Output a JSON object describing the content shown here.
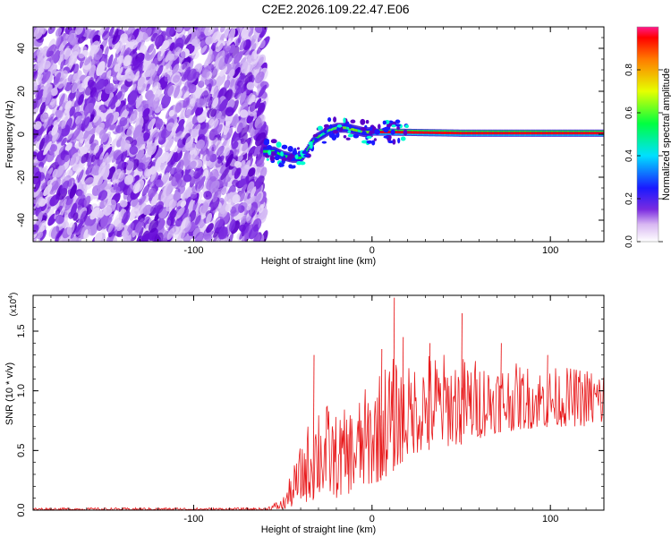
{
  "title": "C2E2.2026.109.22.47.E06",
  "chart_data": [
    {
      "type": "heatmap",
      "xlabel": "Height of straight line (km)",
      "ylabel": "Frequency (Hz)",
      "xlim": [
        -190,
        130
      ],
      "ylim": [
        -50,
        50
      ],
      "xticks": [
        -100,
        0,
        100
      ],
      "yticks": [
        -40,
        -20,
        0,
        20,
        40
      ],
      "noise_region_x": [
        -190,
        -60
      ],
      "signal_track": [
        {
          "x": -60,
          "f": -8
        },
        {
          "x": -55,
          "f": -8
        },
        {
          "x": -50,
          "f": -10
        },
        {
          "x": -45,
          "f": -11
        },
        {
          "x": -40,
          "f": -11
        },
        {
          "x": -37,
          "f": -8
        },
        {
          "x": -35,
          "f": -5
        },
        {
          "x": -32,
          "f": -2
        },
        {
          "x": -28,
          "f": 0
        },
        {
          "x": -24,
          "f": 2
        },
        {
          "x": -20,
          "f": 3
        },
        {
          "x": -15,
          "f": 3
        },
        {
          "x": -10,
          "f": 2
        },
        {
          "x": -5,
          "f": 1
        },
        {
          "x": 0,
          "f": 1
        },
        {
          "x": 10,
          "f": 1
        },
        {
          "x": 50,
          "f": 0.5
        },
        {
          "x": 130,
          "f": 0.5
        }
      ]
    },
    {
      "type": "line",
      "xlabel": "Height of straight line (km)",
      "ylabel": "SNR (10 * v/v)",
      "yscale_label": "(x10",
      "yscale_exp": "4",
      "xlim": [
        -190,
        130
      ],
      "ylim": [
        0,
        1.8
      ],
      "xticks": [
        -100,
        0,
        100
      ],
      "yticks": [
        0.0,
        0.5,
        1.0,
        1.5
      ],
      "series": [
        {
          "color": "#e8191b",
          "envelope": [
            {
              "x": -190,
              "lo": 0.0,
              "hi": 0.02
            },
            {
              "x": -60,
              "lo": 0.0,
              "hi": 0.02
            },
            {
              "x": -50,
              "lo": 0.0,
              "hi": 0.1
            },
            {
              "x": -40,
              "lo": 0.05,
              "hi": 0.55
            },
            {
              "x": -30,
              "lo": 0.1,
              "hi": 1.0
            },
            {
              "x": -20,
              "lo": 0.1,
              "hi": 0.8
            },
            {
              "x": -10,
              "lo": 0.15,
              "hi": 0.9
            },
            {
              "x": 0,
              "lo": 0.2,
              "hi": 1.1
            },
            {
              "x": 10,
              "lo": 0.3,
              "hi": 1.3
            },
            {
              "x": 20,
              "lo": 0.45,
              "hi": 1.2
            },
            {
              "x": 30,
              "lo": 0.5,
              "hi": 1.35
            },
            {
              "x": 50,
              "lo": 0.55,
              "hi": 1.3
            },
            {
              "x": 70,
              "lo": 0.65,
              "hi": 1.25
            },
            {
              "x": 100,
              "lo": 0.7,
              "hi": 1.2
            },
            {
              "x": 130,
              "lo": 0.7,
              "hi": 1.2
            }
          ],
          "peaks": [
            {
              "x": -33,
              "y": 1.3
            },
            {
              "x": 5,
              "y": 1.35
            },
            {
              "x": 12,
              "y": 1.78
            },
            {
              "x": 17,
              "y": 1.45
            },
            {
              "x": 32,
              "y": 1.4
            },
            {
              "x": 50,
              "y": 1.65
            },
            {
              "x": 72,
              "y": 1.4
            },
            {
              "x": 98,
              "y": 1.3
            }
          ]
        }
      ]
    }
  ],
  "colorbar": {
    "label": "Normalized spectral amplitude",
    "ticks": [
      0.0,
      0.2,
      0.4,
      0.6,
      0.8
    ],
    "range": [
      0,
      1
    ]
  }
}
